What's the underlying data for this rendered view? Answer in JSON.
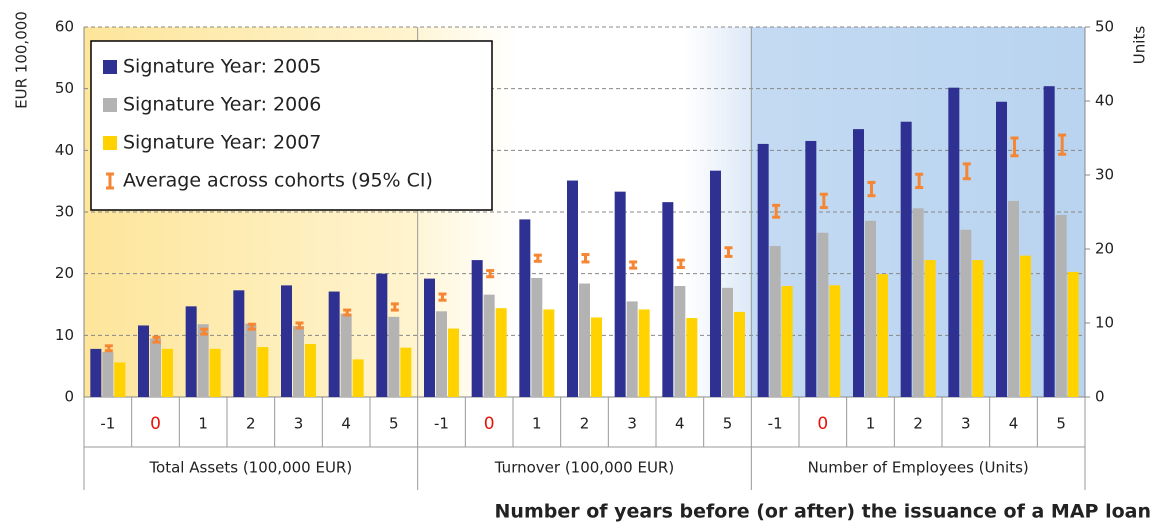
{
  "chart_data": {
    "type": "bar",
    "x_label": "Number of years before (or after) the issuance of a  MAP loan",
    "y_label": "EUR 100,000",
    "y2_label": "Units",
    "ylim": [
      0,
      60
    ],
    "yticks": [
      0,
      10,
      20,
      30,
      40,
      50,
      60
    ],
    "y2lim": [
      0,
      50
    ],
    "y2ticks": [
      0,
      10,
      20,
      30,
      40,
      50
    ],
    "grid": true,
    "legend": "upper left",
    "categories": [
      "-1",
      "0",
      "1",
      "2",
      "3",
      "4",
      "5"
    ],
    "highlight": "0",
    "highlight_color": "#e8140c",
    "series": [
      {
        "name": "Signature Year: 2005",
        "color": "#2e3192"
      },
      {
        "name": "Signature Year: 2006",
        "color": "#b3b3b3"
      },
      {
        "name": "Signature Year: 2007",
        "color": "#ffd200"
      }
    ],
    "ci_name": "Average across cohorts (95% CI)",
    "ci_color": "#f58634",
    "panels": [
      {
        "label": "Total Assets (100,000 EUR)",
        "axis": "y",
        "values": [
          [
            7.8,
            11.6,
            14.7,
            17.3,
            18.1,
            17.1,
            20.0
          ],
          [
            7.3,
            9.5,
            11.8,
            11.9,
            11.5,
            13.5,
            13.0
          ],
          [
            5.6,
            7.8,
            7.8,
            8.1,
            8.6,
            6.1,
            8.0
          ]
        ],
        "ci_mean": [
          7.9,
          9.3,
          10.6,
          11.4,
          11.6,
          13.7,
          14.6
        ],
        "ci_err": [
          0.4,
          0.4,
          0.4,
          0.4,
          0.4,
          0.4,
          0.5
        ]
      },
      {
        "label": "Turnover (100,000 EUR)",
        "axis": "y",
        "values": [
          [
            19.2,
            22.2,
            28.8,
            35.1,
            33.3,
            31.6,
            36.7
          ],
          [
            13.9,
            16.6,
            19.3,
            18.4,
            15.5,
            18.0,
            17.7
          ],
          [
            11.1,
            14.4,
            14.2,
            12.9,
            14.2,
            12.8,
            13.8
          ]
        ],
        "ci_mean": [
          16.2,
          20.0,
          22.5,
          22.5,
          21.4,
          21.6,
          23.5
        ],
        "ci_err": [
          0.5,
          0.5,
          0.5,
          0.6,
          0.5,
          0.6,
          0.7
        ]
      },
      {
        "label": "Number of Employees (Units)",
        "axis": "y2",
        "values": [
          [
            34.2,
            34.6,
            36.2,
            37.2,
            41.8,
            39.9,
            42.0
          ],
          [
            20.4,
            22.2,
            23.8,
            25.5,
            22.6,
            26.5,
            24.6
          ],
          [
            15.0,
            15.1,
            16.6,
            18.5,
            18.5,
            19.1,
            16.9
          ]
        ],
        "ci_mean": [
          25.1,
          26.5,
          28.1,
          29.2,
          30.5,
          33.8,
          34.1
        ],
        "ci_err": [
          0.8,
          0.9,
          0.9,
          0.9,
          1.0,
          1.2,
          1.3
        ]
      }
    ]
  }
}
